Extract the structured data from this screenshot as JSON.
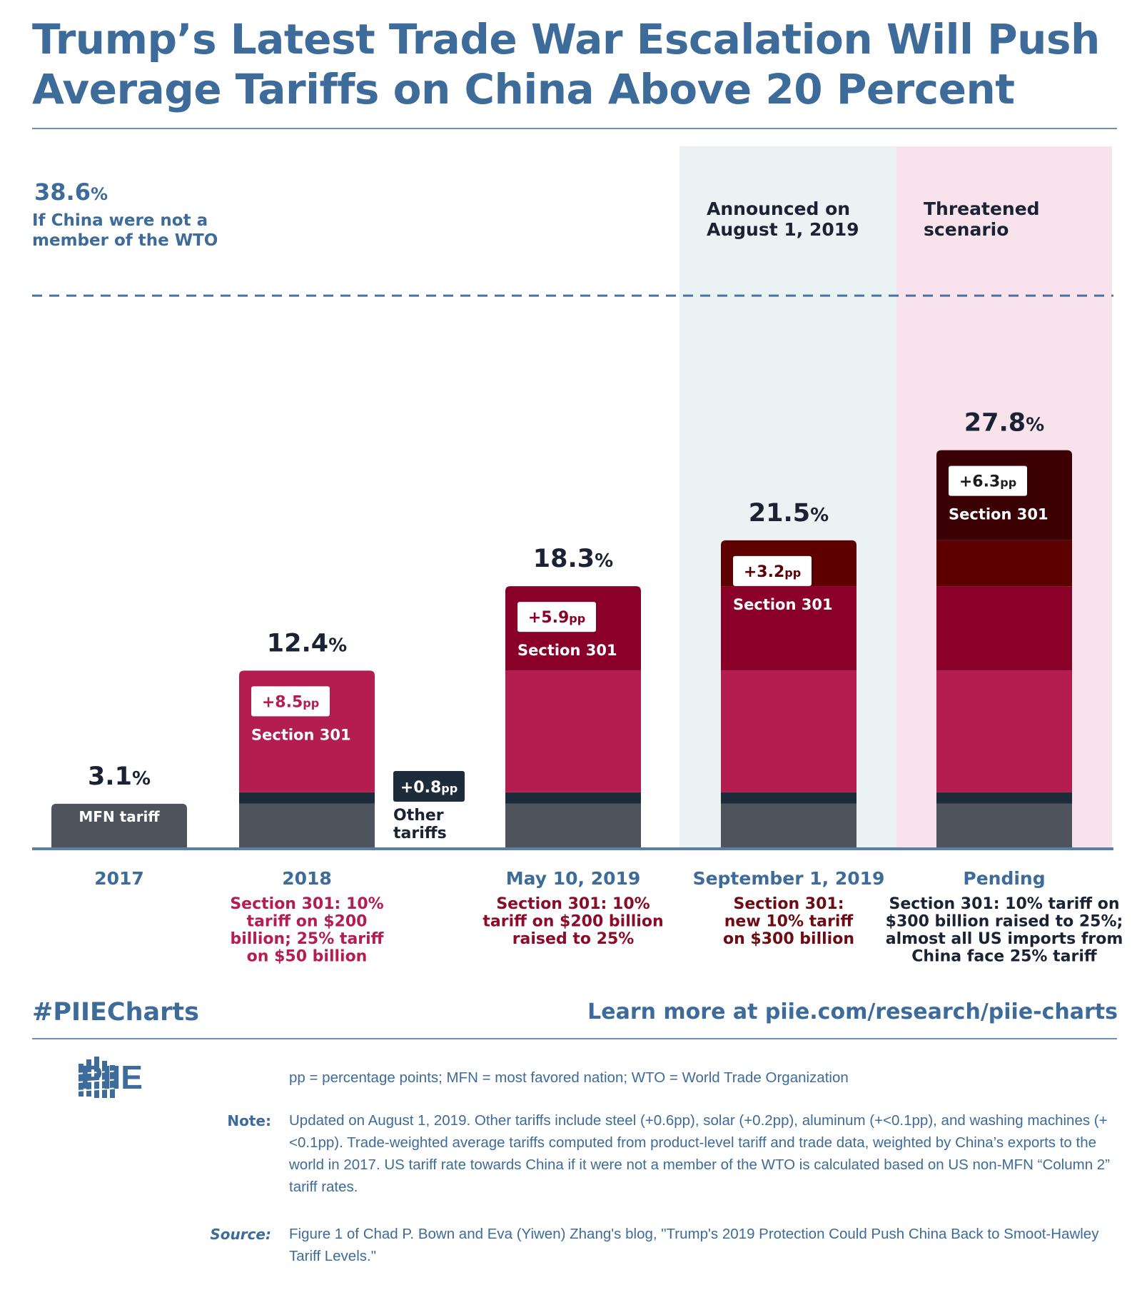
{
  "title": "Trump’s Latest Trade War Escalation Will Push Average Tariffs on China Above 20 Percent",
  "chart_data": {
    "type": "bar",
    "stacked": true,
    "unit": "%",
    "reference_line": {
      "value": 38.6,
      "label_value": "38.6",
      "label_unit": "%",
      "label_lines": [
        "If China were not a",
        "member of the WTO"
      ]
    },
    "shaded_regions": [
      {
        "label_lines": [
          "Announced on",
          "August 1, 2019"
        ],
        "color": "#ebf2f4",
        "from_category": 3
      },
      {
        "label_lines": [
          "Threatened",
          "scenario"
        ],
        "color": "#f8e3ec",
        "from_category": 4
      }
    ],
    "categories": [
      {
        "name": "2017",
        "note_lines": [],
        "note_color": "#3d6b9a"
      },
      {
        "name": "2018",
        "note_lines": [
          "Section 301: 10%",
          "tariff on $200",
          "billion; 25% tariff",
          "on $50 billion"
        ],
        "note_color": "#b31d50"
      },
      {
        "name": "May 10, 2019",
        "note_lines": [
          "Section 301: 10%",
          "tariff on $200 billion",
          "raised to 25%"
        ],
        "note_color": "#8b0b2a"
      },
      {
        "name": "September 1, 2019",
        "note_lines": [
          "Section 301:",
          "new 10% tariff",
          "on $300 billion"
        ],
        "note_color": "#6d0a12"
      },
      {
        "name": "Pending",
        "note_lines": [
          "Section 301: 10% tariff on",
          "$300 billion raised to 25%;",
          "almost all US imports from",
          "China face 25% tariff"
        ],
        "note_color": "#1a2233"
      }
    ],
    "totals": [
      {
        "value": "3.1",
        "unit": "%"
      },
      {
        "value": "12.4",
        "unit": "%"
      },
      {
        "value": "18.3",
        "unit": "%"
      },
      {
        "value": "21.5",
        "unit": "%"
      },
      {
        "value": "27.8",
        "unit": "%"
      }
    ],
    "series": [
      {
        "key": "mfn",
        "color": "#4f545c",
        "values": [
          3.1,
          3.1,
          3.1,
          3.1,
          3.1
        ]
      },
      {
        "key": "other",
        "color": "#1d2b3a",
        "values": [
          0,
          0.8,
          0.8,
          0.8,
          0.8
        ]
      },
      {
        "key": "s301_2018",
        "color": "#b31d50",
        "values": [
          0,
          8.5,
          8.5,
          8.5,
          8.5
        ]
      },
      {
        "key": "s301_may2019",
        "color": "#8b0028",
        "values": [
          0,
          0,
          5.9,
          5.9,
          5.9
        ]
      },
      {
        "key": "s301_sep2019",
        "color": "#5e0000",
        "values": [
          0,
          0,
          0,
          3.2,
          3.2
        ]
      },
      {
        "key": "s301_pending",
        "color": "#3a0003",
        "values": [
          0,
          0,
          0,
          0,
          6.3
        ]
      }
    ],
    "mfn_label": "MFN tariff",
    "other_label": {
      "badge_value": "+0.8",
      "badge_unit": "pp",
      "lines": [
        "Other",
        "tariffs"
      ]
    },
    "increment_labels": [
      {
        "category": 1,
        "value": "+8.5",
        "unit": "pp",
        "text": "Section 301",
        "badge_color": "#b31d50"
      },
      {
        "category": 2,
        "value": "+5.9",
        "unit": "pp",
        "text": "Section 301",
        "badge_color": "#8b0028"
      },
      {
        "category": 3,
        "value": "+3.2",
        "unit": "pp",
        "text": "Section 301",
        "badge_color": "#5e0000"
      },
      {
        "category": 4,
        "value": "+6.3",
        "unit": "pp",
        "text": "Section 301",
        "badge_color": "#1d1d1d"
      }
    ],
    "ylim": [
      0,
      38.6
    ],
    "grid": false,
    "legend": "none"
  },
  "footer": {
    "hashtag": "#PIIECharts",
    "learn_more": "Learn more at piie.com/research/piie-charts",
    "logo_text": "PIIE",
    "abbreviations": "pp = percentage points; MFN = most favored nation; WTO = World Trade Organization",
    "note_label": "Note:",
    "note": "Updated on August 1, 2019. Other tariffs include steel (+0.6pp), solar (+0.2pp), aluminum (+<0.1pp), and washing machines (+<0.1pp). Trade-weighted average tariffs computed from product-level tariff and trade data, weighted by China’s exports to the world in 2017. US tariff rate towards China if it were not a member of the WTO is calculated based on US non-MFN “Column 2” tariff rates.",
    "source_label": "Source:",
    "source": "Figure 1 of Chad P. Bown and Eva (Yiwen) Zhang's blog, \"Trump's 2019 Protection Could Push China Back to Smoot-Hawley Tariff Levels.\""
  }
}
